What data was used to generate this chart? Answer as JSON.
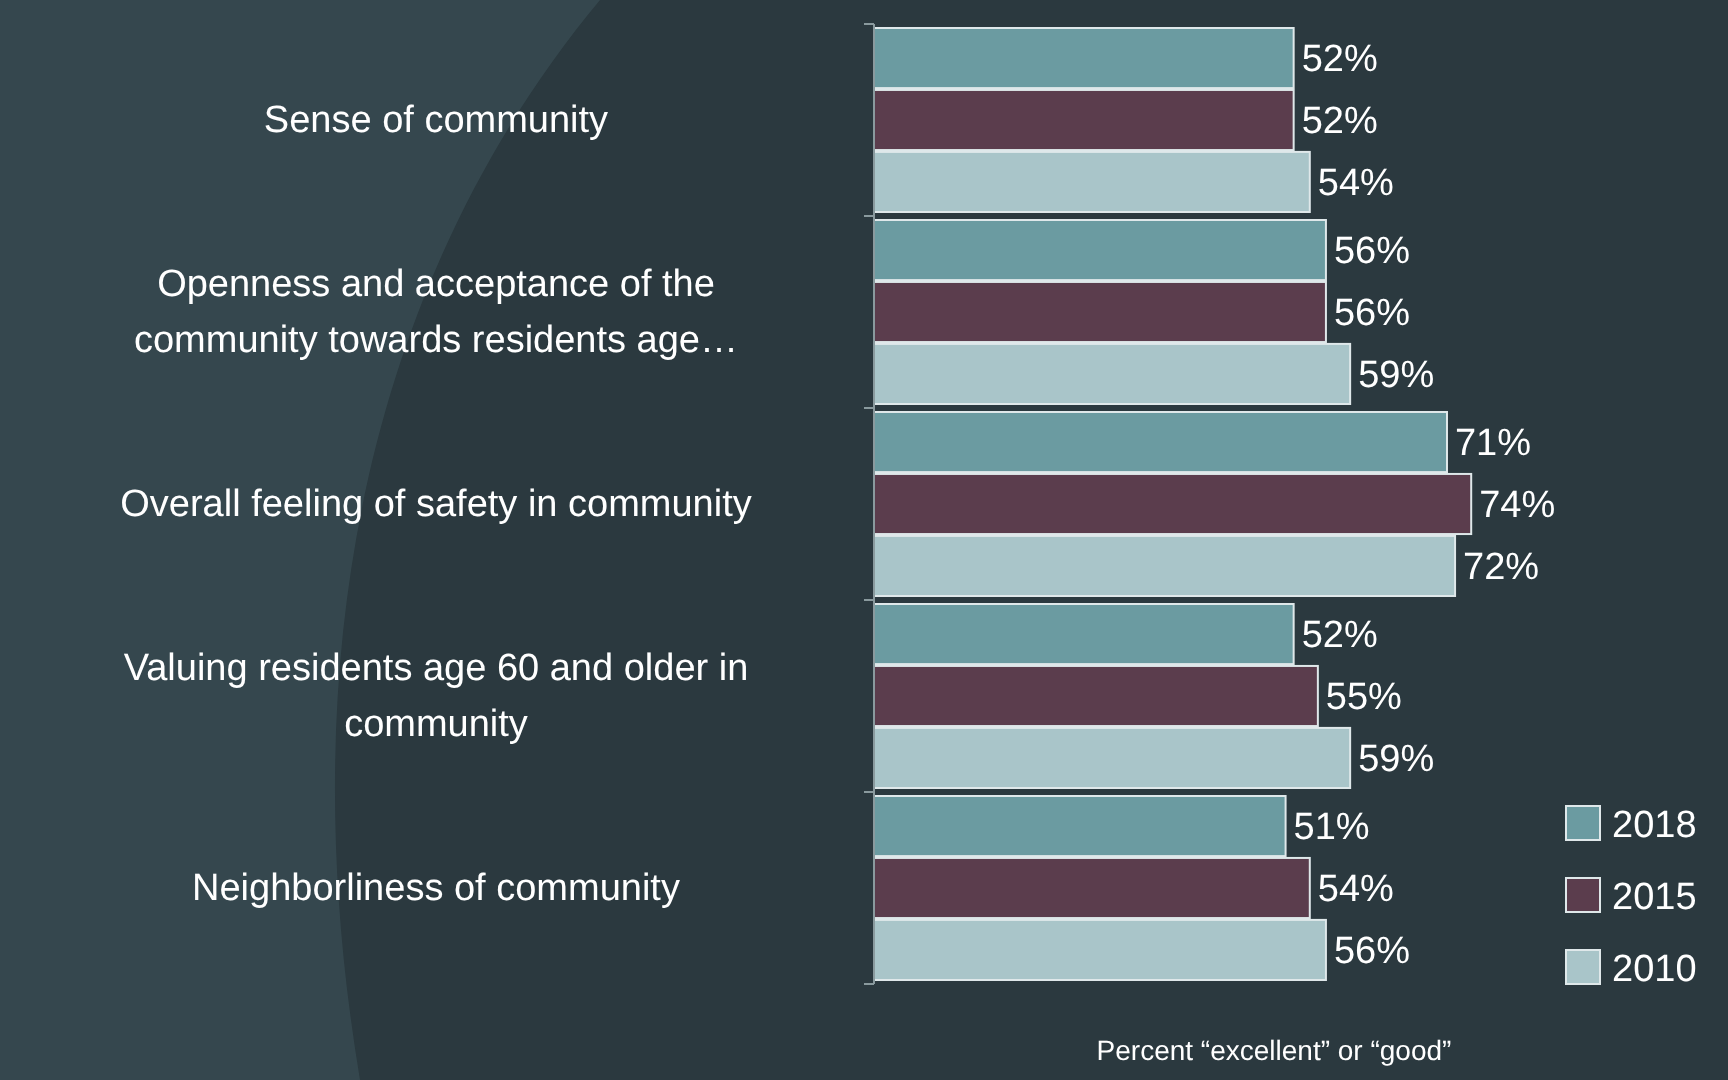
{
  "chart_data": {
    "type": "bar",
    "orientation": "horizontal",
    "xlabel": "Percent “excellent” or “good”",
    "categories": [
      "Sense of community",
      "Openness and acceptance of the community towards residents age…",
      "Overall feeling of safety in community",
      "Valuing residents age 60 and older in community",
      "Neighborliness of community"
    ],
    "series": [
      {
        "name": "2018",
        "color": "#6b9ba1",
        "values": [
          52,
          56,
          71,
          52,
          51
        ],
        "value_labels": [
          "52%",
          "56%",
          "71%",
          "52%",
          "51%"
        ]
      },
      {
        "name": "2015",
        "color": "#5b3d4d",
        "values": [
          52,
          56,
          74,
          55,
          54
        ],
        "value_labels": [
          "52%",
          "56%",
          "74%",
          "55%",
          "54%"
        ]
      },
      {
        "name": "2010",
        "color": "#a9c5c9",
        "values": [
          54,
          59,
          72,
          59,
          56
        ],
        "value_labels": [
          "54%",
          "59%",
          "72%",
          "59%",
          "56%"
        ]
      }
    ],
    "legend": "bottom right"
  }
}
